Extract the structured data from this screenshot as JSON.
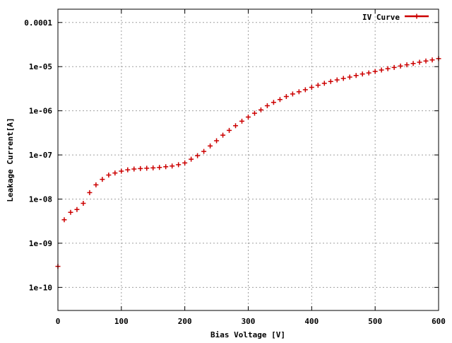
{
  "chart_data": {
    "type": "scatter",
    "title": "",
    "xlabel": "Bias Voltage [V]",
    "ylabel": "Leakage Current[A]",
    "xlim": [
      0,
      600
    ],
    "ylim": [
      3e-11,
      0.0002
    ],
    "ylog": true,
    "grid": true,
    "legend_position": "top-right",
    "xticks": [
      0,
      100,
      200,
      300,
      400,
      500,
      600
    ],
    "xtick_labels": [
      "0",
      "100",
      "200",
      "300",
      "400",
      "500",
      "600"
    ],
    "yticks": [
      1e-10,
      1e-09,
      1e-08,
      1e-07,
      1e-06,
      1e-05,
      0.0001
    ],
    "ytick_labels": [
      "1e-10",
      "1e-09",
      "1e-08",
      "1e-07",
      "1e-06",
      "1e-05",
      "0.0001"
    ],
    "series": [
      {
        "name": "IV Curve",
        "color": "#cc0000",
        "marker": "plus",
        "x": [
          0,
          10,
          20,
          30,
          40,
          50,
          60,
          70,
          80,
          90,
          100,
          110,
          120,
          130,
          140,
          150,
          160,
          170,
          180,
          190,
          200,
          210,
          220,
          230,
          240,
          250,
          260,
          270,
          280,
          290,
          300,
          310,
          320,
          330,
          340,
          350,
          360,
          370,
          380,
          390,
          400,
          410,
          420,
          430,
          440,
          450,
          460,
          470,
          480,
          490,
          500,
          510,
          520,
          530,
          540,
          550,
          560,
          570,
          580,
          590,
          600
        ],
        "y": [
          3e-10,
          3.4e-09,
          5e-09,
          5.8e-09,
          8e-09,
          1.4e-08,
          2.1e-08,
          2.8e-08,
          3.5e-08,
          3.9e-08,
          4.3e-08,
          4.6e-08,
          4.8e-08,
          4.9e-08,
          5e-08,
          5.1e-08,
          5.2e-08,
          5.4e-08,
          5.6e-08,
          6e-08,
          6.6e-08,
          8e-08,
          9.6e-08,
          1.2e-07,
          1.6e-07,
          2.1e-07,
          2.8e-07,
          3.6e-07,
          4.6e-07,
          5.8e-07,
          7.2e-07,
          8.8e-07,
          1.05e-06,
          1.3e-06,
          1.55e-06,
          1.8e-06,
          2.1e-06,
          2.4e-06,
          2.7e-06,
          3e-06,
          3.4e-06,
          3.8e-06,
          4.2e-06,
          4.6e-06,
          5e-06,
          5.4e-06,
          5.8e-06,
          6.3e-06,
          6.8e-06,
          7.2e-06,
          7.8e-06,
          8.4e-06,
          9e-06,
          9.6e-06,
          1.03e-05,
          1.1e-05,
          1.18e-05,
          1.26e-05,
          1.34e-05,
          1.42e-05,
          1.52e-05
        ]
      }
    ]
  }
}
